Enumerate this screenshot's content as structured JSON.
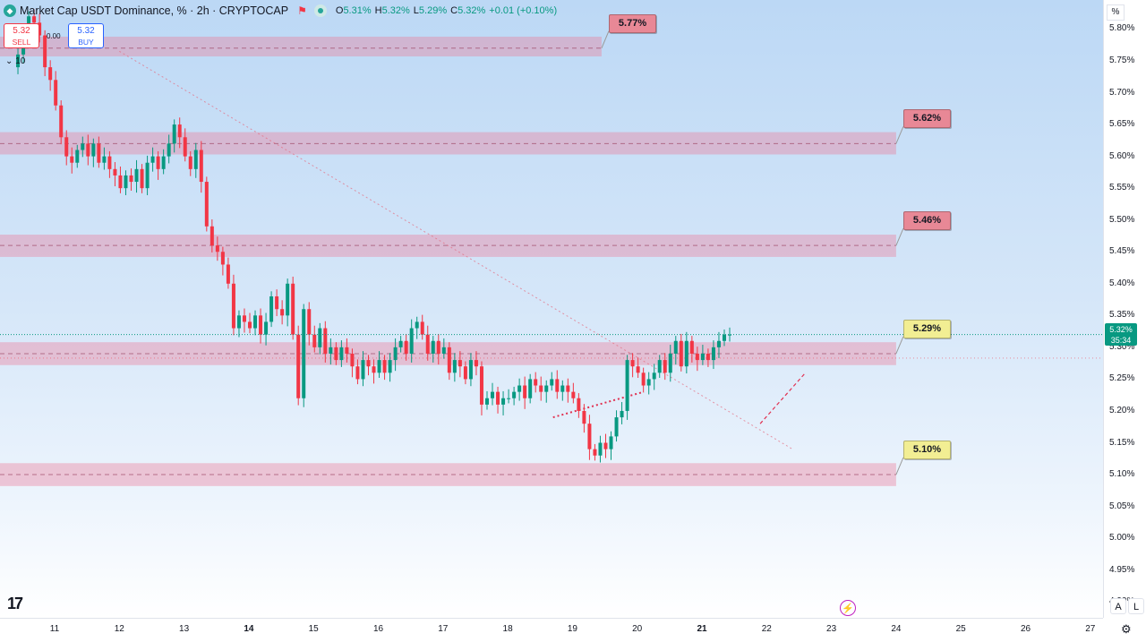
{
  "header": {
    "title": "Market Cap USDT Dominance, %",
    "interval": "2h",
    "exchange": "CRYPTOCAP",
    "ohlc": {
      "O": "5.31%",
      "H": "5.32%",
      "L": "5.29%",
      "C": "5.32%",
      "change": "+0.01 (+0.10%)"
    }
  },
  "trade": {
    "sell_price": "5.32",
    "sell_label": "SELL",
    "buy_price": "5.32",
    "buy_label": "BUY",
    "spread": "0.00"
  },
  "indicator": {
    "volume_label": "10"
  },
  "price_axis": {
    "unit_button": "%",
    "current_price": "5.32%",
    "countdown": "35:34"
  },
  "corner_buttons": {
    "auto": "A",
    "log": "L"
  },
  "chart_data": {
    "type": "candlestick",
    "y_unit": "%",
    "ylim": [
      4.875,
      5.84
    ],
    "yticks": [
      "5.80%",
      "5.75%",
      "5.70%",
      "5.65%",
      "5.60%",
      "5.55%",
      "5.50%",
      "5.45%",
      "5.40%",
      "5.35%",
      "5.30%",
      "5.25%",
      "5.20%",
      "5.15%",
      "5.10%",
      "5.05%",
      "5.00%",
      "4.95%",
      "4.90%"
    ],
    "x_labels": [
      {
        "label": "11",
        "day": 11,
        "bold": false
      },
      {
        "label": "12",
        "day": 12,
        "bold": false
      },
      {
        "label": "13",
        "day": 13,
        "bold": false
      },
      {
        "label": "14",
        "day": 14,
        "bold": true
      },
      {
        "label": "15",
        "day": 15,
        "bold": false
      },
      {
        "label": "16",
        "day": 16,
        "bold": false
      },
      {
        "label": "17",
        "day": 17,
        "bold": false
      },
      {
        "label": "18",
        "day": 18,
        "bold": false
      },
      {
        "label": "19",
        "day": 19,
        "bold": false
      },
      {
        "label": "20",
        "day": 20,
        "bold": false
      },
      {
        "label": "21",
        "day": 21,
        "bold": true
      },
      {
        "label": "22",
        "day": 22,
        "bold": false
      },
      {
        "label": "23",
        "day": 23,
        "bold": false
      },
      {
        "label": "24",
        "day": 24,
        "bold": false
      },
      {
        "label": "25",
        "day": 25,
        "bold": false
      },
      {
        "label": "26",
        "day": 26,
        "bold": false
      },
      {
        "label": "27",
        "day": 27,
        "bold": false
      }
    ],
    "levels": [
      {
        "price": 5.77,
        "label": "5.77%",
        "color": "#e88896",
        "zone": [
          5.757,
          5.788
        ],
        "end_day": 19.45
      },
      {
        "price": 5.62,
        "label": "5.62%",
        "color": "#e88896",
        "zone": [
          5.603,
          5.638
        ],
        "end_day": 24.0
      },
      {
        "price": 5.46,
        "label": "5.46%",
        "color": "#e88896",
        "zone": [
          5.442,
          5.477
        ],
        "end_day": 24.0
      },
      {
        "price": 5.29,
        "label": "5.29%",
        "color": "#f2ee93",
        "zone": [
          5.272,
          5.308
        ],
        "end_day": 24.0
      },
      {
        "price": 5.1,
        "label": "5.10%",
        "color": "#f2ee93",
        "zone": [
          5.082,
          5.118
        ],
        "end_day": 24.0
      }
    ],
    "current_price": 5.32,
    "current_price_color": "#089981",
    "series": [
      {
        "start_day": 10.35,
        "step_days": 0.0833,
        "closes": [
          5.74,
          5.76,
          5.79,
          5.82,
          5.81,
          5.79,
          5.74,
          5.72,
          5.68,
          5.63,
          5.6,
          5.59,
          5.61,
          5.62,
          5.6,
          5.62,
          5.59,
          5.6,
          5.58,
          5.57,
          5.55,
          5.57,
          5.56,
          5.58,
          5.55,
          5.59,
          5.6,
          5.58,
          5.6,
          5.62,
          5.65,
          5.63,
          5.6,
          5.58,
          5.61,
          5.56,
          5.49,
          5.46,
          5.45,
          5.43,
          5.4,
          5.33,
          5.35,
          5.34,
          5.33,
          5.35,
          5.32,
          5.34,
          5.38,
          5.36,
          5.35,
          5.4,
          5.32,
          5.22,
          5.36,
          5.32,
          5.3,
          5.33,
          5.29,
          5.3,
          5.28,
          5.3,
          5.29,
          5.27,
          5.25,
          5.28,
          5.27,
          5.26,
          5.28,
          5.26,
          5.28,
          5.3,
          5.31,
          5.29,
          5.33,
          5.34,
          5.32,
          5.29,
          5.31,
          5.29,
          5.3,
          5.26,
          5.28,
          5.27,
          5.25,
          5.28,
          5.27,
          5.21,
          5.22,
          5.23,
          5.21,
          5.22,
          5.22,
          5.23,
          5.24,
          5.22,
          5.25,
          5.24,
          5.23,
          5.24,
          5.25,
          5.23,
          5.24,
          5.23,
          5.22,
          5.2,
          5.18,
          5.14,
          5.13,
          5.15,
          5.14,
          5.16,
          5.19,
          5.2,
          5.28,
          5.27,
          5.26,
          5.24,
          5.25,
          5.26,
          5.28,
          5.26,
          5.29,
          5.31,
          5.27,
          5.31,
          5.29,
          5.28,
          5.29,
          5.28,
          5.3,
          5.31,
          5.32,
          5.32
        ]
      }
    ]
  }
}
